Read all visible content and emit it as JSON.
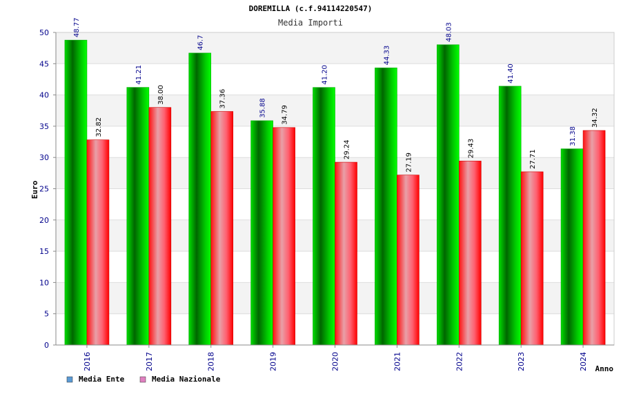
{
  "chart_data": {
    "type": "bar",
    "title": "DOREMILLA (c.f.94114220547)",
    "subtitle": "Media Importi",
    "xlabel": "Anno",
    "ylabel": "Euro",
    "ylim": [
      0,
      50
    ],
    "yticks": [
      0,
      5,
      10,
      15,
      20,
      25,
      30,
      35,
      40,
      45,
      50
    ],
    "grid": true,
    "legend_position": "bottom-left",
    "categories": [
      "2016",
      "2017",
      "2018",
      "2019",
      "2020",
      "2021",
      "2022",
      "2023",
      "2024"
    ],
    "series": [
      {
        "name": "Media Ente",
        "color": "#00cc00",
        "legend_color": "#5b9bd5",
        "values": [
          48.77,
          41.21,
          46.7,
          35.88,
          41.2,
          44.33,
          48.03,
          41.4,
          31.38
        ],
        "labels": [
          "48.77",
          "41.21",
          "46.7",
          "35.88",
          "41.20",
          "44.33",
          "48.03",
          "41.40",
          "31.38"
        ]
      },
      {
        "name": "Media Nazionale",
        "color": "#ff2020",
        "legend_color": "#e080c0",
        "values": [
          32.82,
          38.0,
          37.36,
          34.79,
          29.24,
          27.19,
          29.43,
          27.71,
          34.32
        ],
        "labels": [
          "32.82",
          "38.00",
          "37.36",
          "34.79",
          "29.24",
          "27.19",
          "29.43",
          "27.71",
          "34.32"
        ]
      }
    ]
  }
}
